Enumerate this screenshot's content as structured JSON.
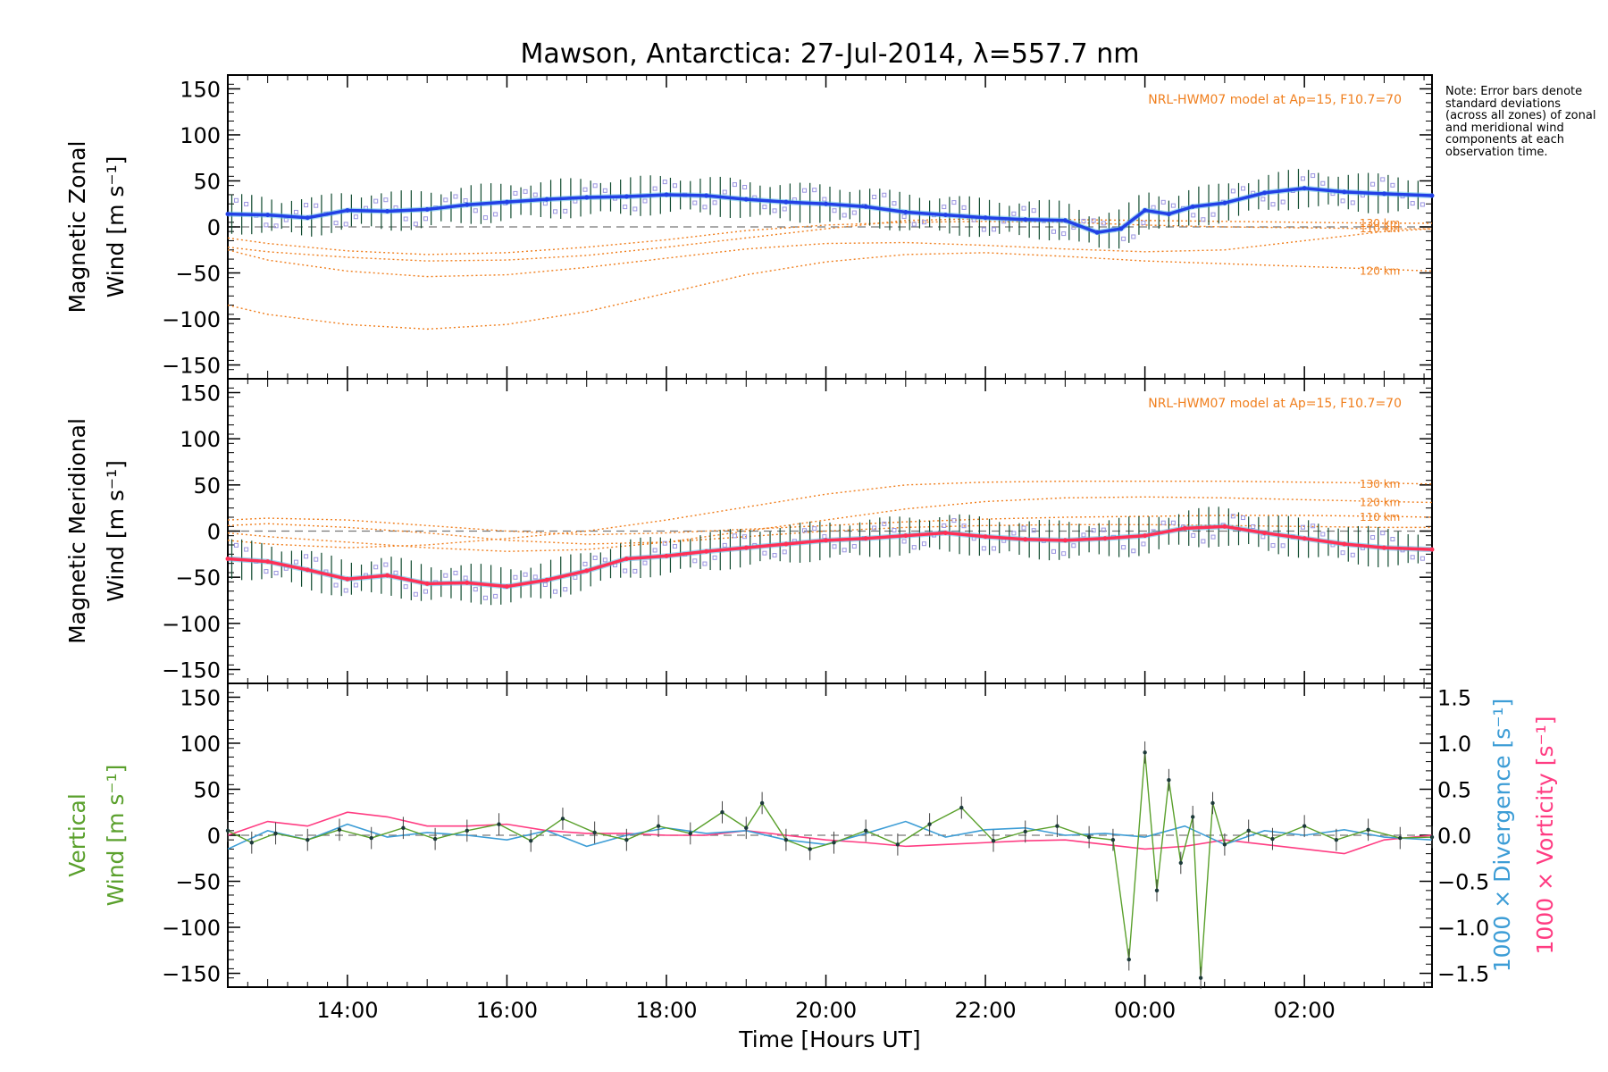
{
  "colors": {
    "axis": "#000000",
    "zonal_mean": "#2240e6",
    "meridional_mean": "#ff2f55",
    "model": "#f07f1e",
    "vertical": "#5aa02c",
    "divergence": "#3d9dd6",
    "vorticity": "#ff3c82",
    "zone_points": "#9a94e0",
    "light_blue": "#59b7e8",
    "error_bar": "#0f4a2e"
  },
  "chart_data": [
    {
      "type": "line",
      "title": "Mawson, Antarctica: 27-Jul-2014, λ=557.7 nm",
      "ylabel": [
        "Magnetic Zonal",
        "Wind [m s⁻¹]"
      ],
      "ylim": [
        -165,
        165
      ],
      "yticks": [
        150,
        100,
        50,
        0,
        -50,
        -100,
        -150
      ],
      "xlim": [
        12.5,
        27.6
      ],
      "model_label": "NRL-HWM07 model at Ap=15, F10.7=70",
      "model_series": [
        {
          "name": "130 km",
          "x": [
            12.5,
            13,
            14,
            15,
            16,
            17,
            18,
            19,
            20,
            21,
            22,
            23,
            24,
            25,
            26,
            27,
            27.6
          ],
          "values": [
            -22,
            -27,
            -33,
            -37,
            -36,
            -31,
            -22,
            -12,
            -2,
            7,
            9,
            8,
            7,
            6,
            5,
            4,
            4
          ]
        },
        {
          "name": "120 km",
          "x": [
            12.5,
            13,
            14,
            15,
            16,
            17,
            18,
            19,
            20,
            21,
            22,
            23,
            24,
            25,
            26,
            27,
            27.6
          ],
          "values": [
            -85,
            -95,
            -106,
            -111,
            -106,
            -92,
            -72,
            -52,
            -38,
            -30,
            -28,
            -32,
            -37,
            -40,
            -43,
            -46,
            -48
          ]
        },
        {
          "name": "110 km",
          "x": [
            12.5,
            13,
            14,
            15,
            16,
            17,
            18,
            19,
            20,
            21,
            22,
            23,
            24,
            25,
            26,
            27,
            27.6
          ],
          "values": [
            -25,
            -36,
            -48,
            -54,
            -52,
            -44,
            -34,
            -24,
            -18,
            -17,
            -20,
            -24,
            -27,
            -25,
            -15,
            -5,
            -2
          ]
        },
        {
          "name": "",
          "x": [
            12.5,
            13,
            14,
            15,
            16,
            17,
            18,
            19,
            20,
            21,
            22,
            23,
            24,
            25,
            26,
            27,
            27.6
          ],
          "values": [
            -12,
            -18,
            -26,
            -30,
            -28,
            -22,
            -14,
            -4,
            2,
            5,
            6,
            5,
            2,
            0,
            -1,
            -2,
            -2
          ]
        }
      ],
      "series": [
        {
          "name": "mean",
          "x": [
            12.5,
            13,
            13.5,
            14,
            14.5,
            15,
            15.5,
            16,
            16.5,
            17,
            17.5,
            18,
            18.5,
            19,
            19.5,
            20,
            20.5,
            21,
            21.5,
            22,
            22.5,
            23,
            23.4,
            23.7,
            24,
            24.3,
            24.6,
            25,
            25.5,
            26,
            26.5,
            27,
            27.6
          ],
          "values": [
            14,
            13,
            10,
            18,
            17,
            19,
            24,
            27,
            30,
            32,
            33,
            35,
            34,
            30,
            27,
            25,
            22,
            16,
            13,
            10,
            8,
            7,
            -6,
            -2,
            18,
            14,
            22,
            26,
            37,
            42,
            38,
            36,
            34
          ]
        }
      ],
      "annotations": [
        "Note: Error bars denote standard deviations (across all zones) of zonal and meridional wind components at each observation time."
      ]
    },
    {
      "type": "line",
      "ylabel": [
        "Magnetic Meridional",
        "Wind [m s⁻¹]"
      ],
      "ylim": [
        -165,
        165
      ],
      "yticks": [
        150,
        100,
        50,
        0,
        -50,
        -100,
        -150
      ],
      "xlim": [
        12.5,
        27.6
      ],
      "model_label": "NRL-HWM07 model at Ap=15, F10.7=70",
      "model_series": [
        {
          "name": "130 km",
          "x": [
            12.5,
            13,
            14,
            15,
            16,
            17,
            18,
            19,
            20,
            21,
            22,
            23,
            24,
            25,
            26,
            27,
            27.6
          ],
          "values": [
            -10,
            -14,
            -18,
            -15,
            -8,
            0,
            12,
            26,
            40,
            50,
            53,
            54,
            54,
            54,
            53,
            52,
            51
          ]
        },
        {
          "name": "120 km",
          "x": [
            12.5,
            13,
            14,
            15,
            16,
            17,
            18,
            19,
            20,
            21,
            22,
            23,
            24,
            25,
            26,
            27,
            27.6
          ],
          "values": [
            -2,
            -6,
            -12,
            -18,
            -22,
            -20,
            -12,
            0,
            12,
            24,
            32,
            36,
            37,
            36,
            34,
            32,
            31
          ]
        },
        {
          "name": "110 km",
          "x": [
            12.5,
            13,
            14,
            15,
            16,
            17,
            18,
            19,
            20,
            21,
            22,
            23,
            24,
            25,
            26,
            27,
            27.6
          ],
          "values": [
            12,
            14,
            12,
            6,
            0,
            -4,
            -2,
            2,
            6,
            10,
            13,
            15,
            16,
            17,
            17,
            16,
            15
          ]
        },
        {
          "name": "",
          "x": [
            12.5,
            13,
            14,
            15,
            16,
            17,
            18,
            19,
            20,
            21,
            22,
            23,
            24,
            25,
            26,
            27,
            27.6
          ],
          "values": [
            6,
            8,
            4,
            -2,
            -10,
            -14,
            -12,
            -6,
            0,
            4,
            6,
            7,
            7,
            6,
            5,
            4,
            4
          ]
        }
      ],
      "series": [
        {
          "name": "mean",
          "x": [
            12.5,
            13,
            13.5,
            14,
            14.5,
            15,
            15.5,
            16,
            16.5,
            17,
            17.5,
            18,
            18.5,
            19,
            19.5,
            20,
            20.5,
            21,
            21.5,
            22,
            22.5,
            23,
            23.5,
            24,
            24.5,
            25,
            25.5,
            26,
            26.5,
            27,
            27.6
          ],
          "values": [
            -30,
            -33,
            -42,
            -52,
            -48,
            -57,
            -56,
            -60,
            -53,
            -43,
            -30,
            -27,
            -22,
            -18,
            -14,
            -10,
            -8,
            -5,
            -2,
            -6,
            -9,
            -10,
            -8,
            -5,
            3,
            5,
            -2,
            -8,
            -14,
            -18,
            -20
          ]
        }
      ]
    },
    {
      "type": "line",
      "ylabel": [
        "Vertical",
        "Wind [m s⁻¹]"
      ],
      "ylim": [
        -165,
        165
      ],
      "yticks": [
        150,
        100,
        50,
        0,
        -50,
        -100,
        -150
      ],
      "y2label_div": "1000 × Divergence [s⁻¹]",
      "y2label_vort": "1000 × Vorticity [s⁻¹]",
      "y2lim": [
        -1.65,
        1.65
      ],
      "y2ticks": [
        "1.5",
        "1.0",
        "0.5",
        "0.0",
        "−0.5",
        "−1.0",
        "−1.5"
      ],
      "xlim": [
        12.5,
        27.6
      ],
      "xticks": [
        "14:00",
        "16:00",
        "18:00",
        "20:00",
        "22:00",
        "00:00",
        "02:00"
      ],
      "xtick_values": [
        14,
        16,
        18,
        20,
        22,
        24,
        26
      ],
      "xlabel": "Time [Hours UT]",
      "series": [
        {
          "name": "Vertical",
          "x": [
            12.5,
            12.8,
            13.1,
            13.5,
            13.9,
            14.3,
            14.7,
            15.1,
            15.5,
            15.9,
            16.3,
            16.7,
            17.1,
            17.5,
            17.9,
            18.3,
            18.7,
            19.0,
            19.2,
            19.5,
            19.8,
            20.1,
            20.5,
            20.9,
            21.3,
            21.7,
            22.1,
            22.5,
            22.9,
            23.3,
            23.6,
            23.8,
            24.0,
            24.15,
            24.3,
            24.45,
            24.6,
            24.7,
            24.85,
            25.0,
            25.3,
            25.6,
            26.0,
            26.4,
            26.8,
            27.2,
            27.6
          ],
          "values": [
            5,
            -8,
            2,
            -5,
            6,
            -3,
            8,
            -4,
            5,
            12,
            -6,
            18,
            3,
            -5,
            10,
            2,
            25,
            8,
            35,
            -5,
            -15,
            -8,
            5,
            -10,
            12,
            30,
            -6,
            4,
            10,
            -2,
            -5,
            -135,
            90,
            -60,
            60,
            -30,
            20,
            -155,
            35,
            -10,
            5,
            -4,
            10,
            -5,
            6,
            -3,
            -2
          ]
        },
        {
          "name": "Divergence",
          "x": [
            12.5,
            13,
            13.5,
            14,
            14.5,
            15,
            15.5,
            16,
            16.5,
            17,
            17.5,
            18,
            18.5,
            19,
            19.5,
            20,
            20.5,
            21,
            21.5,
            22,
            22.5,
            23,
            23.5,
            24,
            24.5,
            25,
            25.5,
            26,
            26.5,
            27,
            27.6
          ],
          "values": [
            -0.15,
            0.05,
            -0.05,
            0.12,
            -0.02,
            0.03,
            0.0,
            -0.05,
            0.05,
            -0.12,
            0.0,
            0.08,
            0.02,
            0.05,
            -0.05,
            -0.1,
            0.02,
            0.15,
            -0.02,
            0.06,
            0.08,
            0.0,
            0.02,
            -0.02,
            0.1,
            -0.1,
            0.05,
            0.0,
            0.06,
            -0.02,
            -0.05
          ]
        },
        {
          "name": "Vorticity",
          "x": [
            12.5,
            13,
            13.5,
            14,
            14.5,
            15,
            15.5,
            16,
            16.5,
            17,
            17.5,
            18,
            18.5,
            19,
            19.5,
            20,
            20.5,
            21,
            21.5,
            22,
            22.5,
            23,
            23.5,
            24,
            24.5,
            25,
            25.5,
            26,
            26.5,
            27,
            27.6
          ],
          "values": [
            0.0,
            0.15,
            0.1,
            0.25,
            0.2,
            0.1,
            0.1,
            0.12,
            0.05,
            0.02,
            0.02,
            0.0,
            0.0,
            0.05,
            0.0,
            -0.05,
            -0.08,
            -0.12,
            -0.1,
            -0.08,
            -0.06,
            -0.05,
            -0.1,
            -0.15,
            -0.12,
            -0.05,
            -0.1,
            -0.15,
            -0.2,
            -0.05,
            0.0
          ]
        }
      ]
    }
  ]
}
